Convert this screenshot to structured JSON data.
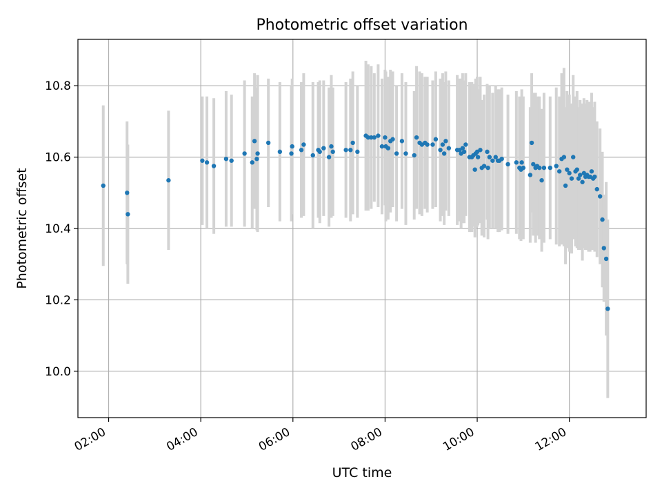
{
  "chart_data": {
    "type": "scatter",
    "title": "Photometric offset variation",
    "xlabel": "UTC time",
    "ylabel": "Photometric offset",
    "x_unit": "UTC time (hh:mm)",
    "xlim": [
      "01:20",
      "13:40"
    ],
    "ylim": [
      9.87,
      10.93
    ],
    "x_ticks": [
      "02:00",
      "04:00",
      "06:00",
      "08:00",
      "10:00",
      "12:00"
    ],
    "y_ticks": [
      "10.0",
      "10.2",
      "10.4",
      "10.6",
      "10.8"
    ],
    "grid": true,
    "colors": {
      "points": "#1f77b4",
      "errorbars": "#d3d3d3",
      "grid": "#b0b0b0"
    },
    "series": [
      {
        "columns": [
          "time",
          "offset",
          "error"
        ],
        "points": [
          [
            "01:53",
            10.52,
            0.225
          ],
          [
            "02:24",
            10.5,
            0.2
          ],
          [
            "02:25",
            10.44,
            0.195
          ],
          [
            "03:18",
            10.535,
            0.195
          ],
          [
            "04:02",
            10.59,
            0.18
          ],
          [
            "04:08",
            10.585,
            0.185
          ],
          [
            "04:17",
            10.575,
            0.19
          ],
          [
            "04:33",
            10.595,
            0.19
          ],
          [
            "04:40",
            10.59,
            0.185
          ],
          [
            "04:57",
            10.61,
            0.205
          ],
          [
            "05:07",
            10.585,
            0.185
          ],
          [
            "05:10",
            10.645,
            0.19
          ],
          [
            "05:13",
            10.595,
            0.2
          ],
          [
            "05:14",
            10.61,
            0.22
          ],
          [
            "05:28",
            10.64,
            0.18
          ],
          [
            "05:43",
            10.615,
            0.195
          ],
          [
            "05:58",
            10.61,
            0.19
          ],
          [
            "05:59",
            10.63,
            0.19
          ],
          [
            "06:11",
            10.62,
            0.19
          ],
          [
            "06:14",
            10.635,
            0.2
          ],
          [
            "06:26",
            10.605,
            0.205
          ],
          [
            "06:33",
            10.62,
            0.19
          ],
          [
            "06:35",
            10.615,
            0.2
          ],
          [
            "06:40",
            10.625,
            0.19
          ],
          [
            "06:47",
            10.6,
            0.195
          ],
          [
            "06:50",
            10.63,
            0.2
          ],
          [
            "06:52",
            10.615,
            0.18
          ],
          [
            "07:09",
            10.62,
            0.19
          ],
          [
            "07:15",
            10.62,
            0.2
          ],
          [
            "07:18",
            10.64,
            0.2
          ],
          [
            "07:24",
            10.615,
            0.185
          ],
          [
            "07:35",
            10.66,
            0.21
          ],
          [
            "07:38",
            10.655,
            0.205
          ],
          [
            "07:42",
            10.655,
            0.2
          ],
          [
            "07:46",
            10.655,
            0.18
          ],
          [
            "07:51",
            10.66,
            0.2
          ],
          [
            "07:56",
            10.63,
            0.19
          ],
          [
            "08:00",
            10.655,
            0.19
          ],
          [
            "08:01",
            10.63,
            0.21
          ],
          [
            "08:04",
            10.625,
            0.2
          ],
          [
            "08:07",
            10.645,
            0.2
          ],
          [
            "08:10",
            10.65,
            0.19
          ],
          [
            "08:15",
            10.61,
            0.19
          ],
          [
            "08:22",
            10.645,
            0.19
          ],
          [
            "08:27",
            10.61,
            0.2
          ],
          [
            "08:38",
            10.605,
            0.18
          ],
          [
            "08:41",
            10.655,
            0.2
          ],
          [
            "08:45",
            10.64,
            0.2
          ],
          [
            "08:48",
            10.635,
            0.2
          ],
          [
            "08:52",
            10.64,
            0.185
          ],
          [
            "08:55",
            10.635,
            0.19
          ],
          [
            "09:02",
            10.635,
            0.18
          ],
          [
            "09:06",
            10.65,
            0.19
          ],
          [
            "09:12",
            10.62,
            0.2
          ],
          [
            "09:15",
            10.635,
            0.2
          ],
          [
            "09:17",
            10.61,
            0.2
          ],
          [
            "09:19",
            10.645,
            0.195
          ],
          [
            "09:23",
            10.625,
            0.19
          ],
          [
            "09:34",
            10.62,
            0.21
          ],
          [
            "09:37",
            10.62,
            0.2
          ],
          [
            "09:39",
            10.61,
            0.21
          ],
          [
            "09:41",
            10.625,
            0.21
          ],
          [
            "09:43",
            10.615,
            0.2
          ],
          [
            "09:45",
            10.635,
            0.2
          ],
          [
            "09:50",
            10.6,
            0.21
          ],
          [
            "09:53",
            10.6,
            0.21
          ],
          [
            "09:55",
            10.605,
            0.2
          ],
          [
            "09:57",
            10.565,
            0.19
          ],
          [
            "09:58",
            10.61,
            0.21
          ],
          [
            "10:00",
            10.615,
            0.21
          ],
          [
            "10:01",
            10.6,
            0.19
          ],
          [
            "10:04",
            10.62,
            0.205
          ],
          [
            "10:06",
            10.57,
            0.19
          ],
          [
            "10:09",
            10.575,
            0.2
          ],
          [
            "10:13",
            10.615,
            0.19
          ],
          [
            "10:14",
            10.57,
            0.2
          ],
          [
            "10:16",
            10.6,
            0.2
          ],
          [
            "10:20",
            10.59,
            0.19
          ],
          [
            "10:24",
            10.6,
            0.2
          ],
          [
            "10:27",
            10.59,
            0.2
          ],
          [
            "10:29",
            10.59,
            0.2
          ],
          [
            "10:32",
            10.595,
            0.2
          ],
          [
            "10:40",
            10.58,
            0.195
          ],
          [
            "10:51",
            10.585,
            0.2
          ],
          [
            "10:55",
            10.57,
            0.2
          ],
          [
            "10:57",
            10.565,
            0.2
          ],
          [
            "10:58",
            10.585,
            0.205
          ],
          [
            "11:00",
            10.57,
            0.2
          ],
          [
            "11:09",
            10.55,
            0.19
          ],
          [
            "11:11",
            10.64,
            0.195
          ],
          [
            "11:13",
            10.58,
            0.2
          ],
          [
            "11:16",
            10.57,
            0.21
          ],
          [
            "11:18",
            10.575,
            0.195
          ],
          [
            "11:21",
            10.57,
            0.2
          ],
          [
            "11:24",
            10.535,
            0.2
          ],
          [
            "11:27",
            10.57,
            0.21
          ],
          [
            "11:35",
            10.57,
            0.2
          ],
          [
            "11:43",
            10.575,
            0.22
          ],
          [
            "11:47",
            10.56,
            0.21
          ],
          [
            "11:50",
            10.595,
            0.24
          ],
          [
            "11:53",
            10.6,
            0.25
          ],
          [
            "11:55",
            10.52,
            0.22
          ],
          [
            "11:57",
            10.565,
            0.22
          ],
          [
            "12:00",
            10.555,
            0.22
          ],
          [
            "12:03",
            10.54,
            0.21
          ],
          [
            "12:05",
            10.6,
            0.23
          ],
          [
            "12:08",
            10.56,
            0.21
          ],
          [
            "12:10",
            10.565,
            0.22
          ],
          [
            "12:12",
            10.54,
            0.2
          ],
          [
            "12:14",
            10.55,
            0.21
          ],
          [
            "12:17",
            10.53,
            0.22
          ],
          [
            "12:19",
            10.555,
            0.21
          ],
          [
            "12:21",
            10.545,
            0.205
          ],
          [
            "12:23",
            10.55,
            0.21
          ],
          [
            "12:25",
            10.545,
            0.21
          ],
          [
            "12:27",
            10.545,
            0.21
          ],
          [
            "12:29",
            10.56,
            0.22
          ],
          [
            "12:31",
            10.54,
            0.2
          ],
          [
            "12:33",
            10.545,
            0.21
          ],
          [
            "12:36",
            10.51,
            0.19
          ],
          [
            "12:40",
            10.49,
            0.19
          ],
          [
            "12:43",
            10.425,
            0.19
          ],
          [
            "12:45",
            10.345,
            0.15
          ],
          [
            "12:48",
            10.315,
            0.215
          ],
          [
            "12:50",
            10.175,
            0.25
          ]
        ]
      }
    ]
  }
}
